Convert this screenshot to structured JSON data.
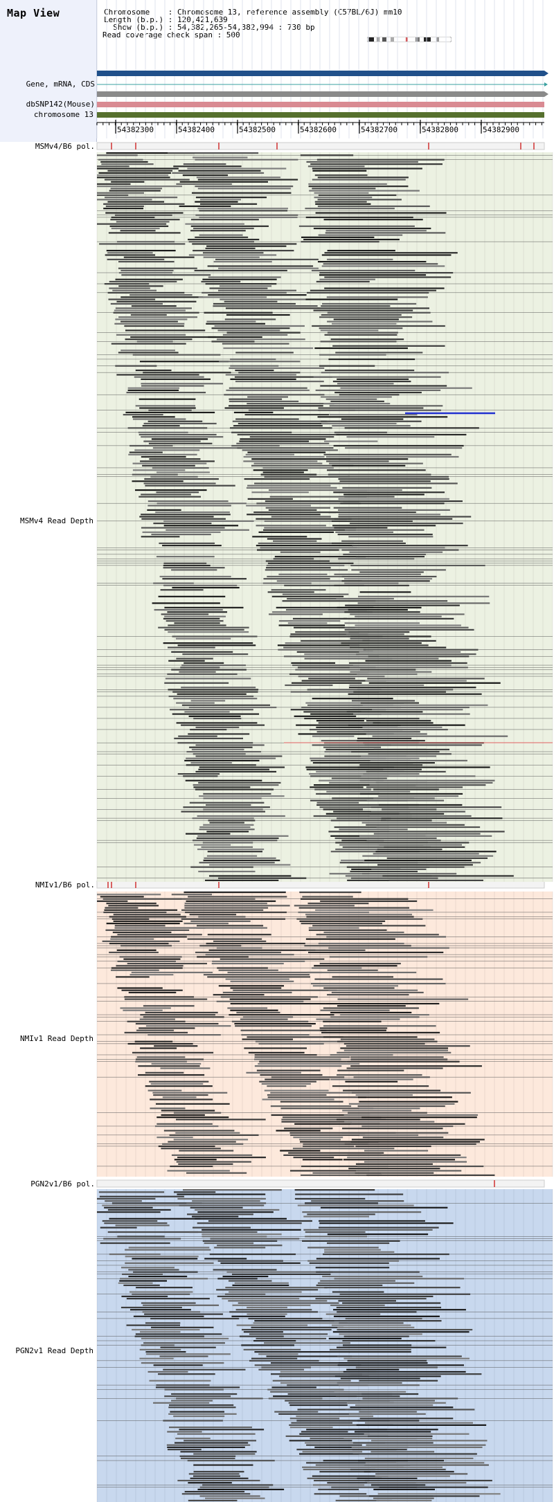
{
  "header": {
    "title": "Map View",
    "info_lines": [
      "Chromosome    : Chromosome 13, reference assembly (C57BL/6J) mm10",
      "Length (b.p.) : 120,421,639",
      "  Show (b.p.) : 54,382,265-54,382,994 : 730 bp",
      "Read coverage check span : 500"
    ]
  },
  "tracks": {
    "gene_label": "Gene, mRNA, CDS",
    "snp_label": "dbSNP142(Mouse)",
    "chrom_label": "chromosome 13",
    "msm_pol_label": "MSMv4/B6 pol.",
    "msm_depth_label": "MSMv4 Read Depth",
    "nmi_pol_label": "NMIv1/B6 pol.",
    "nmi_depth_label": "NMIv1 Read Depth",
    "pgn_pol_label": "PGN2v1/B6 pol.",
    "pgn_depth_label": "PGN2v1 Read Depth"
  },
  "axis": {
    "ticks": [
      "54382300",
      "54382400",
      "54382500",
      "54382600",
      "54382700",
      "54382800",
      "54382900"
    ]
  },
  "colors": {
    "gene_blue": "#20508a",
    "mrna_gray": "#8a8a8a",
    "snp_pink": "#d98a92",
    "chrom_green": "#56702e",
    "msm_bg": "#ecf1e2",
    "nmi_bg": "#fde9dc",
    "pgn_bg": "#c8d8ee",
    "pol_red": "#d03030"
  }
}
